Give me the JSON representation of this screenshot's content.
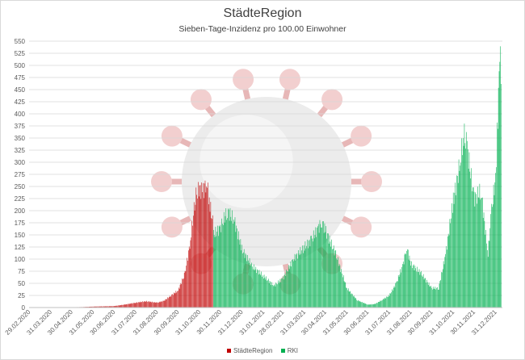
{
  "chart_data": {
    "type": "bar",
    "title": "StädteRegion",
    "subtitle": "Sieben-Tage-Inzidenz pro 100.00 Einwohner",
    "xlabel": "",
    "ylabel": "",
    "ylim": [
      0,
      550
    ],
    "yticks": [
      0,
      25,
      50,
      75,
      100,
      125,
      150,
      175,
      200,
      225,
      250,
      275,
      300,
      325,
      350,
      375,
      400,
      425,
      450,
      475,
      500,
      525,
      550
    ],
    "grid": true,
    "legend_position": "bottom",
    "x_start": "29.02.2020",
    "x_end": "09.01.2022",
    "x_tick_labels": [
      "29.02.2020",
      "31.03.2020",
      "30.04.2020",
      "31.05.2020",
      "30.06.2020",
      "31.07.2020",
      "31.08.2020",
      "30.09.2020",
      "31.10.2020",
      "30.11.2020",
      "31.12.2020",
      "31.01.2021",
      "28.02.2021",
      "31.03.2021",
      "30.04.2021",
      "31.05.2021",
      "30.06.2021",
      "31.07.2021",
      "31.08.2021",
      "30.09.2021",
      "31.10.2021",
      "30.11.2021",
      "31.12.2021"
    ],
    "series": [
      {
        "name": "StädteRegion",
        "color": "#c00000",
        "keypoints": [
          [
            "29.02.2020",
            0
          ],
          [
            "31.03.2020",
            0
          ],
          [
            "15.05.2020",
            1
          ],
          [
            "31.05.2020",
            2
          ],
          [
            "30.06.2020",
            3
          ],
          [
            "15.07.2020",
            6
          ],
          [
            "31.07.2020",
            10
          ],
          [
            "15.08.2020",
            13
          ],
          [
            "31.08.2020",
            10
          ],
          [
            "10.09.2020",
            14
          ],
          [
            "20.09.2020",
            25
          ],
          [
            "30.09.2020",
            35
          ],
          [
            "10.10.2020",
            70
          ],
          [
            "18.10.2020",
            140
          ],
          [
            "25.10.2020",
            230
          ],
          [
            "31.10.2020",
            245
          ],
          [
            "05.11.2020",
            240
          ],
          [
            "10.11.2020",
            262
          ],
          [
            "15.11.2020",
            210
          ],
          [
            "20.11.2020",
            170
          ]
        ]
      },
      {
        "name": "RKI",
        "color": "#00b050",
        "keypoints": [
          [
            "20.11.2020",
            150
          ],
          [
            "30.11.2020",
            165
          ],
          [
            "10.12.2020",
            200
          ],
          [
            "20.12.2020",
            180
          ],
          [
            "31.12.2020",
            120
          ],
          [
            "15.01.2021",
            85
          ],
          [
            "31.01.2021",
            65
          ],
          [
            "15.02.2021",
            45
          ],
          [
            "28.02.2021",
            60
          ],
          [
            "15.03.2021",
            100
          ],
          [
            "31.03.2021",
            125
          ],
          [
            "10.04.2021",
            140
          ],
          [
            "20.04.2021",
            165
          ],
          [
            "25.04.2021",
            178
          ],
          [
            "30.04.2021",
            160
          ],
          [
            "15.05.2021",
            110
          ],
          [
            "31.05.2021",
            40
          ],
          [
            "15.06.2021",
            15
          ],
          [
            "30.06.2021",
            6
          ],
          [
            "10.07.2021",
            7
          ],
          [
            "20.07.2021",
            15
          ],
          [
            "31.07.2021",
            25
          ],
          [
            "10.08.2021",
            50
          ],
          [
            "20.08.2021",
            90
          ],
          [
            "25.08.2021",
            125
          ],
          [
            "31.08.2021",
            90
          ],
          [
            "15.09.2021",
            70
          ],
          [
            "30.09.2021",
            40
          ],
          [
            "10.10.2021",
            40
          ],
          [
            "20.10.2021",
            110
          ],
          [
            "31.10.2021",
            220
          ],
          [
            "10.11.2021",
            300
          ],
          [
            "15.11.2021",
            360
          ],
          [
            "20.11.2021",
            330
          ],
          [
            "30.11.2021",
            225
          ],
          [
            "10.12.2021",
            240
          ],
          [
            "20.12.2021",
            110
          ],
          [
            "25.12.2021",
            200
          ],
          [
            "31.12.2021",
            270
          ],
          [
            "03.01.2022",
            400
          ],
          [
            "06.01.2022",
            512
          ],
          [
            "09.01.2022",
            495
          ]
        ]
      }
    ]
  }
}
